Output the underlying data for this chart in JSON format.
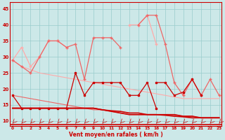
{
  "x": [
    0,
    1,
    2,
    3,
    4,
    5,
    6,
    7,
    8,
    9,
    10,
    11,
    12,
    13,
    14,
    15,
    16,
    17,
    18,
    19,
    20,
    21,
    22,
    23
  ],
  "s_light1": [
    29,
    33,
    27,
    30,
    35,
    35,
    33,
    null,
    null,
    null,
    null,
    null,
    null,
    null,
    null,
    null,
    null,
    null,
    null,
    null,
    null,
    null,
    null,
    null
  ],
  "s_light2": [
    null,
    null,
    null,
    null,
    null,
    null,
    null,
    null,
    null,
    null,
    null,
    null,
    null,
    40,
    40,
    43,
    34,
    null,
    null,
    null,
    null,
    null,
    null,
    null
  ],
  "s_mid1": [
    null,
    null,
    null,
    null,
    null,
    null,
    null,
    null,
    null,
    null,
    null,
    null,
    null,
    null,
    40,
    43,
    43,
    34,
    22,
    18,
    23,
    18,
    23,
    18
  ],
  "s_mid2": [
    29,
    27,
    25,
    30,
    35,
    35,
    33,
    34,
    23,
    36,
    36,
    36,
    33,
    null,
    null,
    null,
    null,
    null,
    null,
    null,
    null,
    null,
    null,
    null
  ],
  "s_dark1": [
    18,
    14,
    14,
    14,
    14,
    14,
    14,
    25,
    18,
    22,
    22,
    22,
    22,
    18,
    18,
    22,
    14,
    null,
    null,
    null,
    null,
    null,
    null,
    null
  ],
  "s_dark2": [
    null,
    null,
    null,
    null,
    null,
    null,
    null,
    null,
    null,
    null,
    null,
    null,
    null,
    null,
    null,
    null,
    22,
    22,
    18,
    19,
    23,
    18,
    null,
    null
  ],
  "line_light": [
    29,
    27,
    26,
    25,
    24.5,
    24,
    23.5,
    23,
    22.5,
    22,
    21.5,
    21,
    20.5,
    20,
    19.5,
    19,
    18.5,
    18,
    17.5,
    17,
    17,
    17,
    17,
    17
  ],
  "line_mid": [
    18,
    17.5,
    17,
    16.5,
    16,
    15.5,
    15,
    14.5,
    14,
    13.5,
    13.5,
    13,
    12.5,
    12,
    12,
    12,
    12,
    12,
    12,
    11.5,
    11.5,
    11,
    11,
    11
  ],
  "line_dark1": [
    14,
    14,
    14,
    14,
    14,
    14,
    14,
    14,
    14,
    14,
    13.5,
    13,
    12.5,
    12,
    12,
    12,
    12,
    12,
    12,
    11.5,
    11.5,
    11,
    11,
    11
  ],
  "line_dark2": [
    14,
    14,
    14,
    14,
    14,
    14,
    14,
    14,
    14,
    14,
    13.5,
    13.2,
    13,
    12.5,
    12.5,
    12,
    12,
    11.8,
    11.5,
    11.3,
    11,
    11,
    11,
    11
  ],
  "bg_color": "#cce8e8",
  "grid_color": "#99cccc",
  "dark": "#cc0000",
  "mid": "#ee6666",
  "light": "#ffaaaa",
  "xlabel": "Vent moyen/en rafales ( km/h )",
  "yticks": [
    10,
    15,
    20,
    25,
    30,
    35,
    40,
    45
  ],
  "xlim": [
    -0.3,
    23.3
  ],
  "ylim": [
    8.5,
    47
  ]
}
